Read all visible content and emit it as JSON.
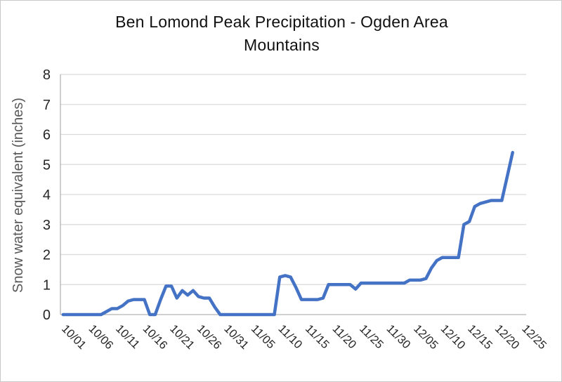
{
  "chart_data": {
    "type": "line",
    "title": "Ben Lomond Peak Precipitation - Ogden Area Mountains",
    "ylabel": "Snow water equivalent (inches)",
    "xlabel": "",
    "ylim": [
      0,
      8
    ],
    "ytick_step": 1,
    "ytick_labels": [
      "0",
      "1",
      "2",
      "3",
      "4",
      "5",
      "6",
      "7",
      "8"
    ],
    "xtick_every": 5,
    "grid": true,
    "legend_position": "none",
    "series_name": "snow-water-equivalent",
    "line_color": "#4472C4",
    "gridline_color": "#d9d9d9",
    "axis_line_color": "#b3b3b3",
    "tick_text_color": "#262626",
    "x": [
      "10/01",
      "10/02",
      "10/03",
      "10/04",
      "10/05",
      "10/06",
      "10/07",
      "10/08",
      "10/09",
      "10/10",
      "10/11",
      "10/12",
      "10/13",
      "10/14",
      "10/15",
      "10/16",
      "10/17",
      "10/18",
      "10/19",
      "10/20",
      "10/21",
      "10/22",
      "10/23",
      "10/24",
      "10/25",
      "10/26",
      "10/27",
      "10/28",
      "10/29",
      "10/30",
      "10/31",
      "11/01",
      "11/02",
      "11/03",
      "11/04",
      "11/05",
      "11/06",
      "11/07",
      "11/08",
      "11/09",
      "11/10",
      "11/11",
      "11/12",
      "11/13",
      "11/14",
      "11/15",
      "11/16",
      "11/17",
      "11/18",
      "11/19",
      "11/20",
      "11/21",
      "11/22",
      "11/23",
      "11/24",
      "11/25",
      "11/26",
      "11/27",
      "11/28",
      "11/29",
      "11/30",
      "12/01",
      "12/02",
      "12/03",
      "12/04",
      "12/05",
      "12/06",
      "12/07",
      "12/08",
      "12/09",
      "12/10",
      "12/11",
      "12/12",
      "12/13",
      "12/14",
      "12/15",
      "12/16",
      "12/17",
      "12/18",
      "12/19",
      "12/20",
      "12/21",
      "12/22",
      "12/23",
      "12/24",
      "12/25"
    ],
    "values": [
      0,
      0,
      0,
      0,
      0,
      0,
      0,
      0,
      0.1,
      0.2,
      0.2,
      0.3,
      0.45,
      0.5,
      0.5,
      0.5,
      0,
      0,
      0.5,
      0.95,
      0.95,
      0.55,
      0.8,
      0.65,
      0.8,
      0.6,
      0.55,
      0.55,
      0.25,
      0,
      0,
      0,
      0,
      0,
      0,
      0,
      0,
      0,
      0,
      0,
      1.25,
      1.3,
      1.25,
      0.9,
      0.5,
      0.5,
      0.5,
      0.5,
      0.55,
      1.0,
      1.0,
      1.0,
      1.0,
      1.0,
      0.85,
      1.05,
      1.05,
      1.05,
      1.05,
      1.05,
      1.05,
      1.05,
      1.05,
      1.05,
      1.15,
      1.15,
      1.15,
      1.2,
      1.55,
      1.8,
      1.9,
      1.9,
      1.9,
      1.9,
      3.0,
      3.1,
      3.6,
      3.7,
      3.75,
      3.8,
      3.8,
      3.8,
      4.6,
      5.4,
      null,
      null
    ]
  }
}
